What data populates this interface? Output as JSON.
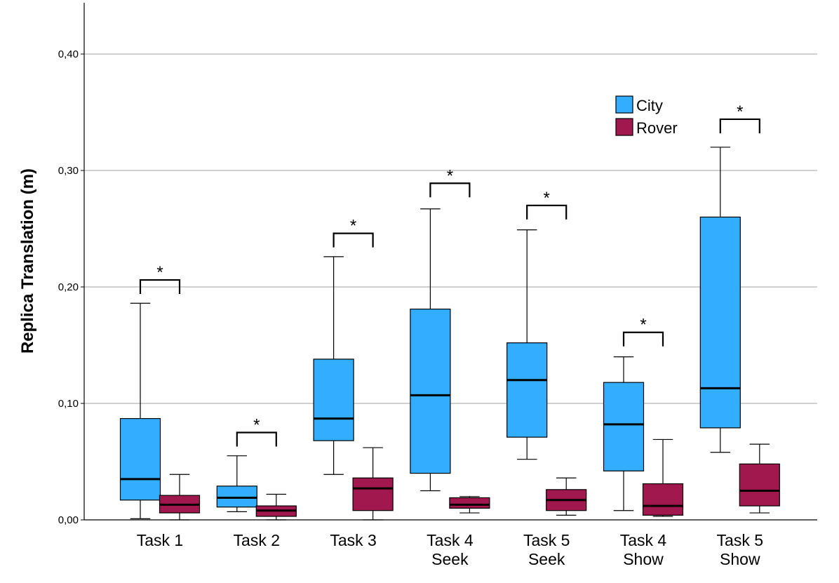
{
  "chart_data": {
    "type": "boxplot",
    "ylabel": "Replica Translation (m)",
    "xlabel": "",
    "ylim": [
      0,
      0.44
    ],
    "yticks": [
      0.0,
      0.1,
      0.2,
      0.3,
      0.4
    ],
    "ytick_labels": [
      "0,00",
      "0,10",
      "0,20",
      "0,30",
      "0,40"
    ],
    "grid": "horizontal",
    "legend_position": "top-right",
    "categories": [
      {
        "line1": "Task 1",
        "line2": ""
      },
      {
        "line1": "Task 2",
        "line2": ""
      },
      {
        "line1": "Task 3",
        "line2": ""
      },
      {
        "line1": "Task 4",
        "line2": "Seek"
      },
      {
        "line1": "Task 5",
        "line2": "Seek"
      },
      {
        "line1": "Task 4",
        "line2": "Show"
      },
      {
        "line1": "Task 5",
        "line2": "Show"
      }
    ],
    "series": [
      {
        "name": "City",
        "color": "#33adff",
        "boxes": [
          {
            "min": 0.001,
            "q1": 0.017,
            "median": 0.035,
            "q3": 0.087,
            "max": 0.186
          },
          {
            "min": 0.007,
            "q1": 0.011,
            "median": 0.019,
            "q3": 0.029,
            "max": 0.055
          },
          {
            "min": 0.039,
            "q1": 0.068,
            "median": 0.087,
            "q3": 0.138,
            "max": 0.226
          },
          {
            "min": 0.025,
            "q1": 0.04,
            "median": 0.107,
            "q3": 0.181,
            "max": 0.267
          },
          {
            "min": 0.052,
            "q1": 0.071,
            "median": 0.12,
            "q3": 0.152,
            "max": 0.249
          },
          {
            "min": 0.008,
            "q1": 0.042,
            "median": 0.082,
            "q3": 0.118,
            "max": 0.14
          },
          {
            "min": 0.058,
            "q1": 0.079,
            "median": 0.113,
            "q3": 0.26,
            "max": 0.32
          }
        ]
      },
      {
        "name": "Rover",
        "color": "#a0184e",
        "boxes": [
          {
            "min": 0.0,
            "q1": 0.006,
            "median": 0.013,
            "q3": 0.021,
            "max": 0.039
          },
          {
            "min": 0.0,
            "q1": 0.003,
            "median": 0.008,
            "q3": 0.012,
            "max": 0.022
          },
          {
            "min": 0.0,
            "q1": 0.008,
            "median": 0.027,
            "q3": 0.036,
            "max": 0.062
          },
          {
            "min": 0.006,
            "q1": 0.01,
            "median": 0.013,
            "q3": 0.019,
            "max": 0.02
          },
          {
            "min": 0.004,
            "q1": 0.008,
            "median": 0.017,
            "q3": 0.026,
            "max": 0.036
          },
          {
            "min": 0.003,
            "q1": 0.004,
            "median": 0.012,
            "q3": 0.031,
            "max": 0.069
          },
          {
            "min": 0.006,
            "q1": 0.012,
            "median": 0.025,
            "q3": 0.048,
            "max": 0.065
          }
        ]
      }
    ],
    "significance": [
      {
        "category_index": 0,
        "y": 0.206,
        "label": "*"
      },
      {
        "category_index": 1,
        "y": 0.075,
        "label": "*"
      },
      {
        "category_index": 2,
        "y": 0.246,
        "label": "*"
      },
      {
        "category_index": 3,
        "y": 0.289,
        "label": "*"
      },
      {
        "category_index": 4,
        "y": 0.27,
        "label": "*"
      },
      {
        "category_index": 5,
        "y": 0.161,
        "label": "*"
      },
      {
        "category_index": 6,
        "y": 0.344,
        "label": "*"
      }
    ],
    "legend": [
      {
        "name": "City",
        "color": "#33adff"
      },
      {
        "name": "Rover",
        "color": "#a0184e"
      }
    ]
  }
}
